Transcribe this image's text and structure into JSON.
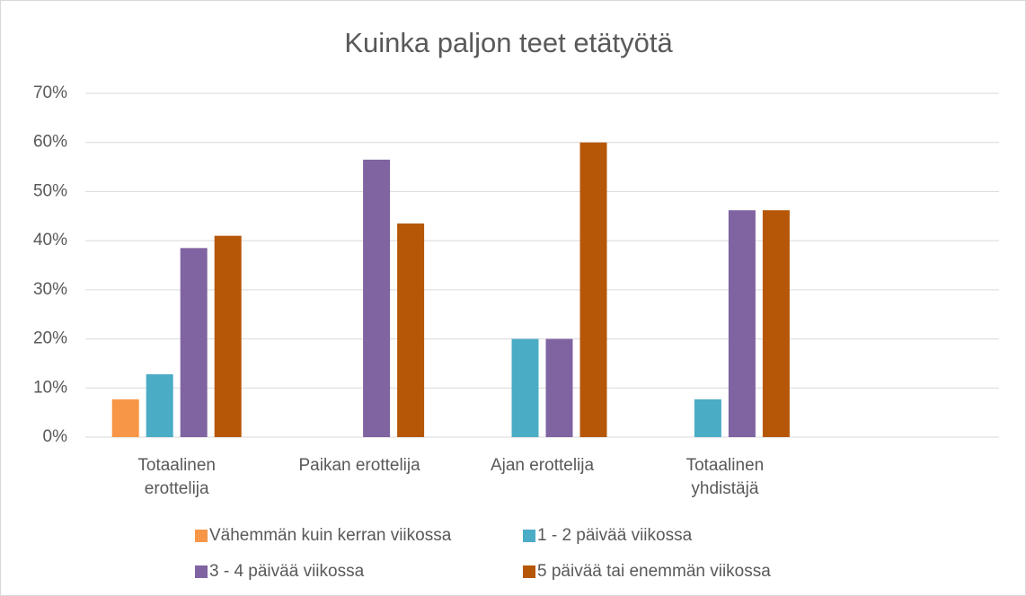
{
  "chart_data": {
    "type": "bar",
    "title": "Kuinka paljon teet etätyötä",
    "categories": [
      [
        "Totaalinen",
        "erottelija"
      ],
      [
        "Paikan erottelija"
      ],
      [
        "Ajan erottelija"
      ],
      [
        "Totaalinen",
        "yhdistäjä"
      ],
      null
    ],
    "series": [
      {
        "name": "Vähemmän kuin kerran viikossa",
        "color": "#f79646",
        "values": [
          7.7,
          0,
          0,
          0,
          null
        ]
      },
      {
        "name": "1 - 2 päivää viikossa",
        "color": "#4bacc6",
        "values": [
          12.8,
          0,
          20,
          7.7,
          null
        ]
      },
      {
        "name": "3 - 4 päivää viikossa",
        "color": "#8064a2",
        "values": [
          38.5,
          56.5,
          20,
          46.2,
          null
        ]
      },
      {
        "name": "5 päivää tai enemmän viikossa",
        "color": "#b65708",
        "values": [
          41,
          43.5,
          60,
          46.2,
          null
        ]
      }
    ],
    "ylim": [
      0,
      70
    ],
    "yticks": [
      {
        "value": 0,
        "label": "0%"
      },
      {
        "value": 10,
        "label": "10%"
      },
      {
        "value": 20,
        "label": "20%"
      },
      {
        "value": 30,
        "label": "30%"
      },
      {
        "value": 40,
        "label": "40%"
      },
      {
        "value": 50,
        "label": "50%"
      },
      {
        "value": 60,
        "label": "60%"
      },
      {
        "value": 70,
        "label": "70%"
      }
    ],
    "grid": true,
    "legend": "bottom"
  }
}
